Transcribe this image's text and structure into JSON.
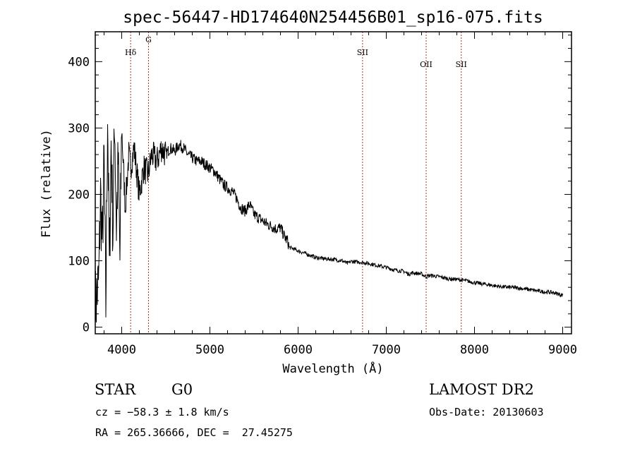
{
  "chart_data": {
    "type": "line",
    "title": "spec-56447-HD174640N254456B01_sp16-075.fits",
    "xlabel": "Wavelength (Å)",
    "ylabel": "Flux (relative)",
    "xlim": [
      3700,
      9100
    ],
    "ylim": [
      -10,
      445
    ],
    "x_ticks": [
      4000,
      5000,
      6000,
      7000,
      8000,
      9000
    ],
    "y_ticks": [
      0,
      100,
      200,
      300,
      400
    ],
    "grid": false,
    "lines": [
      {
        "label": "Hδ",
        "x": 4101
      },
      {
        "label": "G",
        "x": 4304
      },
      {
        "label": "SII",
        "x": 6731
      },
      {
        "label": "OII",
        "x": 7452
      },
      {
        "label": "SII",
        "x": 7850
      }
    ],
    "series": [
      {
        "x": [
          3700,
          3740,
          3760,
          3780,
          3800,
          3820,
          3840,
          3860,
          3880,
          3900,
          3920,
          3940,
          3960,
          3980,
          4000,
          4040,
          4080,
          4100,
          4140,
          4200,
          4250,
          4300,
          4340,
          4400,
          4450,
          4500,
          4550,
          4600,
          4650,
          4700,
          4750,
          4800,
          4850,
          4900,
          4950,
          5000,
          5050,
          5100,
          5150,
          5200,
          5250,
          5300,
          5350,
          5400,
          5450,
          5500,
          5550,
          5600,
          5650,
          5700,
          5750,
          5800,
          5850,
          5880,
          5900,
          5950,
          6000,
          6100,
          6200,
          6300,
          6400,
          6500,
          6560,
          6600,
          6700,
          6800,
          6900,
          7000,
          7100,
          7200,
          7250,
          7300,
          7400,
          7450,
          7500,
          7600,
          7700,
          7800,
          7900,
          8000,
          8100,
          8200,
          8300,
          8400,
          8500,
          8600,
          8700,
          8800,
          8900,
          9000
        ],
        "values": [
          30,
          70,
          200,
          120,
          250,
          30,
          330,
          80,
          280,
          140,
          320,
          150,
          250,
          100,
          300,
          180,
          260,
          240,
          270,
          200,
          240,
          230,
          260,
          250,
          270,
          260,
          270,
          265,
          275,
          270,
          260,
          255,
          250,
          250,
          245,
          240,
          235,
          225,
          215,
          210,
          205,
          195,
          180,
          175,
          185,
          170,
          165,
          160,
          155,
          152,
          148,
          150,
          135,
          130,
          120,
          118,
          115,
          110,
          105,
          103,
          102,
          100,
          96,
          99,
          98,
          96,
          93,
          90,
          86,
          84,
          80,
          82,
          80,
          76,
          78,
          76,
          73,
          72,
          70,
          67,
          65,
          63,
          61,
          60,
          59,
          57,
          55,
          53,
          52,
          48
        ]
      }
    ]
  },
  "info": {
    "object_type": "STAR",
    "subclass": "G0",
    "survey": "LAMOST DR2",
    "cz": "cz = −58.3 ± 1.8 km/s",
    "obs_date": "Obs-Date: 20130603",
    "coords": "RA = 265.36666, DEC =  27.45275"
  }
}
